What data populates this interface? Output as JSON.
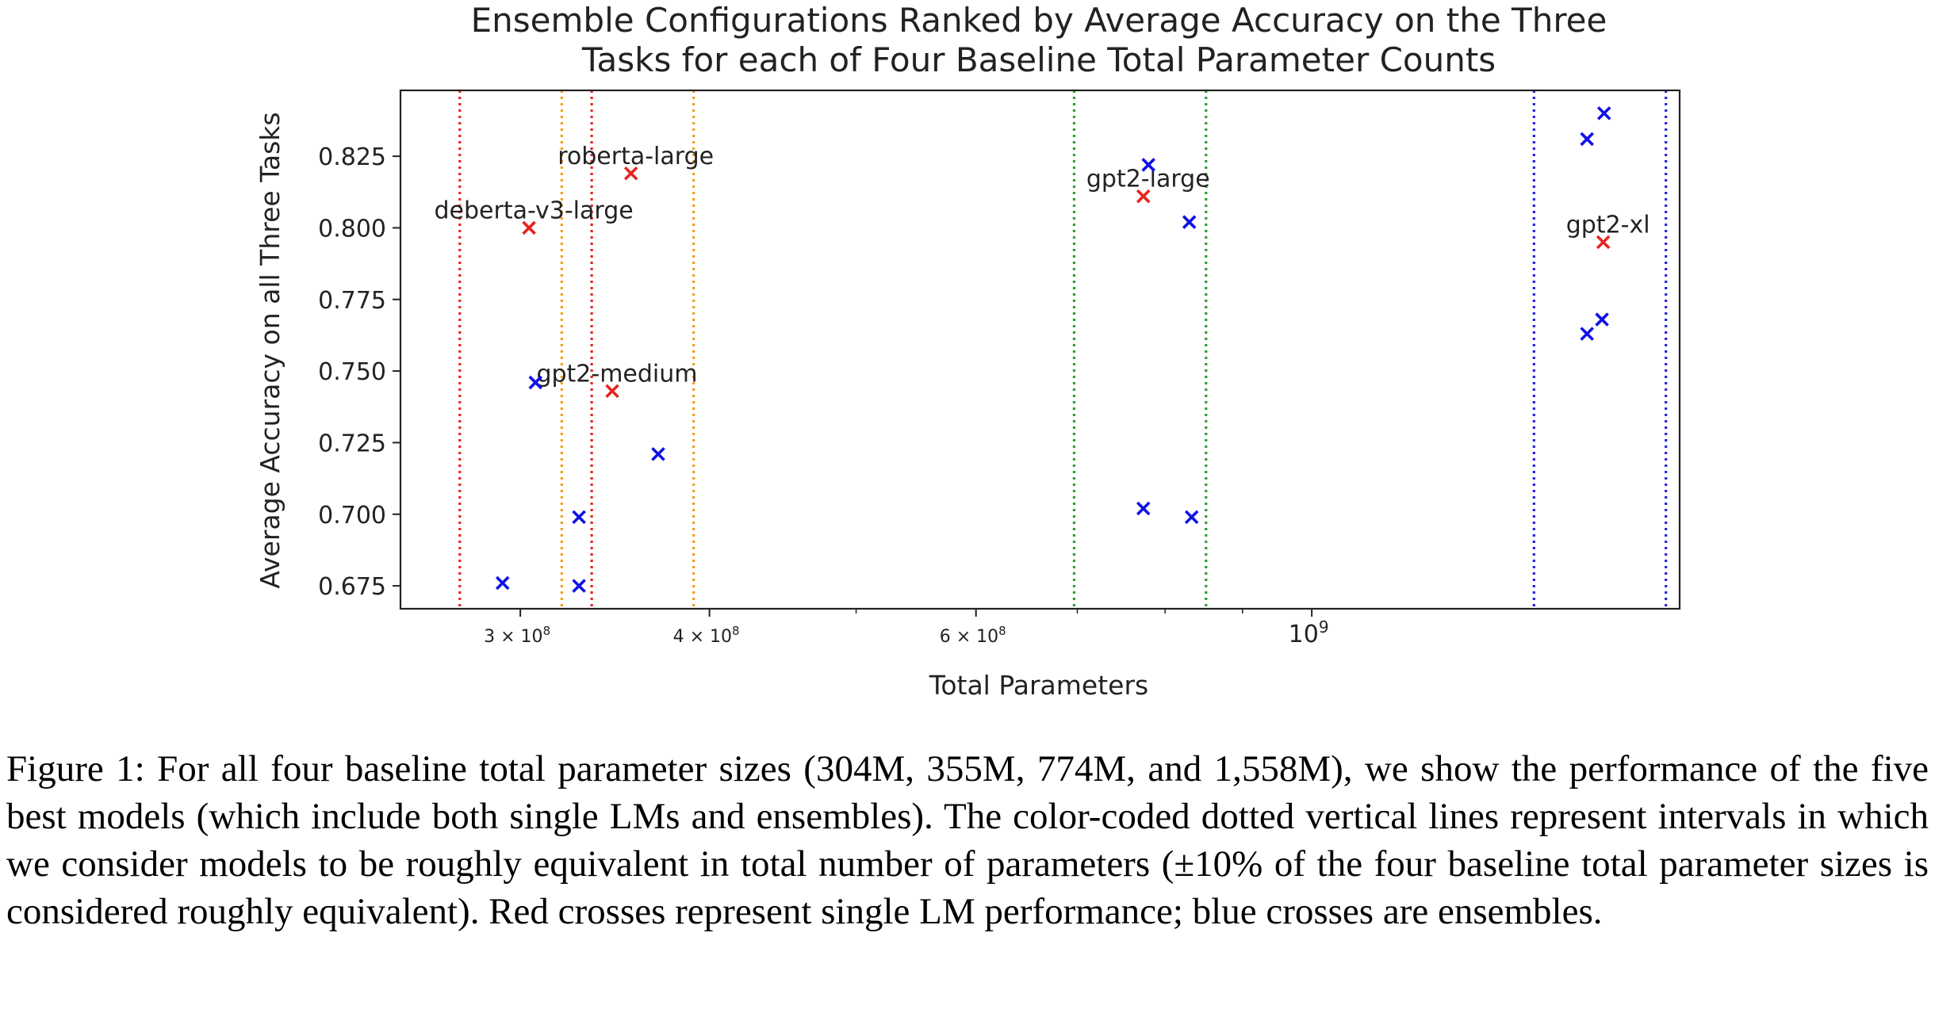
{
  "chart_data": {
    "type": "scatter",
    "title_lines": [
      "Ensemble Configurations Ranked by Average Accuracy on the Three",
      "Tasks for each of Four Baseline Total Parameter Counts"
    ],
    "xlabel": "Total Parameters",
    "ylabel": "Average Accuracy on all Three Tasks",
    "x_scale": "log",
    "xlim": [
      250000000,
      1750000000
    ],
    "ylim": [
      0.667,
      0.848
    ],
    "x_ticks": [
      {
        "value": 300000000,
        "base": "3 × 10",
        "exp": "8"
      },
      {
        "value": 400000000,
        "base": "4 × 10",
        "exp": "8"
      },
      {
        "value": 600000000,
        "base": "6 × 10",
        "exp": "8"
      },
      {
        "value": 1000000000,
        "base": "10",
        "exp": "9"
      }
    ],
    "y_ticks": [
      "0.675",
      "0.700",
      "0.725",
      "0.750",
      "0.775",
      "0.800",
      "0.825"
    ],
    "grid": false,
    "series": [
      {
        "color": "#e8241f",
        "points": [
          {
            "x": 304000000,
            "y": 0.8,
            "label": "deberta-v3-large"
          },
          {
            "x": 355000000,
            "y": 0.819,
            "label": "roberta-large"
          },
          {
            "x": 345000000,
            "y": 0.743,
            "label": "gpt2-medium"
          },
          {
            "x": 774000000,
            "y": 0.811,
            "label": "gpt2-large"
          },
          {
            "x": 1558000000,
            "y": 0.795,
            "label": "gpt2-xl"
          }
        ]
      },
      {
        "color": "#1010e8",
        "points": [
          {
            "x": 292000000,
            "y": 0.676
          },
          {
            "x": 307000000,
            "y": 0.746
          },
          {
            "x": 328000000,
            "y": 0.699
          },
          {
            "x": 328000000,
            "y": 0.675
          },
          {
            "x": 370000000,
            "y": 0.721
          },
          {
            "x": 780000000,
            "y": 0.822
          },
          {
            "x": 830000000,
            "y": 0.802
          },
          {
            "x": 774000000,
            "y": 0.702
          },
          {
            "x": 833000000,
            "y": 0.699
          },
          {
            "x": 1520000000,
            "y": 0.831
          },
          {
            "x": 1560000000,
            "y": 0.84
          },
          {
            "x": 1520000000,
            "y": 0.763
          },
          {
            "x": 1555000000,
            "y": 0.768
          }
        ]
      }
    ],
    "vertical_lines": [
      {
        "x": 273600000,
        "color": "#e8241f"
      },
      {
        "x": 334400000,
        "color": "#e8241f"
      },
      {
        "x": 319500000,
        "color": "#f0a020"
      },
      {
        "x": 390500000,
        "color": "#f0a020"
      },
      {
        "x": 696600000,
        "color": "#2ca02c"
      },
      {
        "x": 851400000,
        "color": "#2ca02c"
      },
      {
        "x": 1402200000,
        "color": "#2424d8"
      },
      {
        "x": 1713800000,
        "color": "#2424d8"
      }
    ]
  },
  "caption": "Figure 1: For all four baseline total parameter sizes (304M, 355M, 774M, and 1,558M), we show the performance of the five best models (which include both single LMs and ensembles). The color-coded dotted vertical lines represent intervals in which we consider models to be roughly equivalent in total number of parameters (±10% of the four baseline total parameter sizes is considered roughly equivalent). Red crosses represent single LM performance; blue crosses are ensembles."
}
